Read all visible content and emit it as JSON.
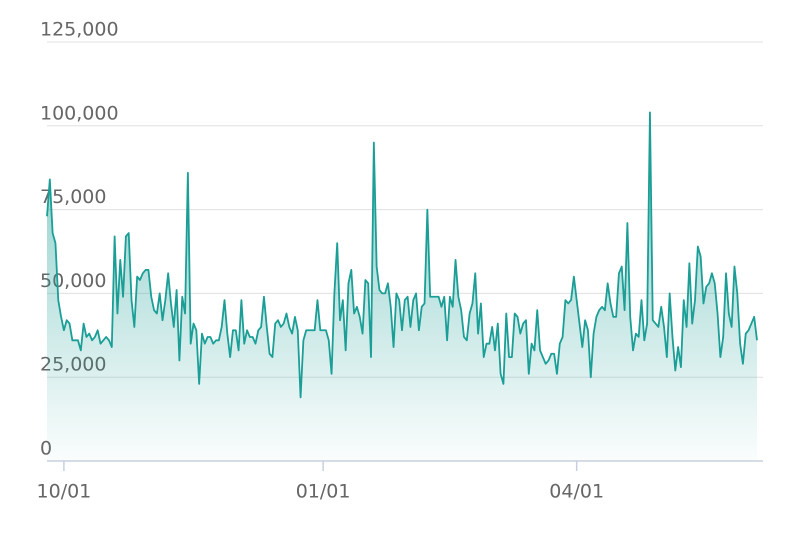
{
  "chart_data": {
    "type": "area",
    "color": "#1a9e96",
    "ylim": [
      0,
      125000
    ],
    "yticks": [
      0,
      {
        "value": 25000,
        "label": "25,000"
      },
      {
        "value": 50000,
        "label": "50,000"
      },
      {
        "value": 75000,
        "label": "75,000"
      },
      {
        "value": 100000,
        "label": "100,000"
      },
      {
        "value": 125000,
        "label": "125,000"
      }
    ],
    "grid": true,
    "xticks": [
      "10/01",
      "01/01",
      "04/01"
    ],
    "x": [
      "09/25",
      "09/26",
      "09/27",
      "09/28",
      "09/29",
      "09/30",
      "10/01",
      "10/02",
      "10/03",
      "10/04",
      "10/05",
      "10/06",
      "10/07",
      "10/08",
      "10/09",
      "10/10",
      "10/11",
      "10/12",
      "10/13",
      "10/14",
      "10/15",
      "10/16",
      "10/17",
      "10/18",
      "10/19",
      "10/20",
      "10/21",
      "10/22",
      "10/23",
      "10/24",
      "10/25",
      "10/26",
      "10/27",
      "10/28",
      "10/29",
      "10/30",
      "10/31",
      "11/01",
      "11/02",
      "11/03",
      "11/04",
      "11/05",
      "11/06",
      "11/07",
      "11/08",
      "11/09",
      "11/10",
      "11/11",
      "11/12",
      "11/13",
      "11/14",
      "11/15",
      "11/16",
      "11/17",
      "11/18",
      "11/19",
      "11/20",
      "11/21",
      "11/22",
      "11/23",
      "11/24",
      "11/25",
      "11/26",
      "11/27",
      "11/28",
      "11/29",
      "11/30",
      "12/01",
      "12/02",
      "12/03",
      "12/04",
      "12/05",
      "12/06",
      "12/07",
      "12/08",
      "12/09",
      "12/10",
      "12/11",
      "12/12",
      "12/13",
      "12/14",
      "12/15",
      "12/16",
      "12/17",
      "12/18",
      "12/19",
      "12/20",
      "12/21",
      "12/22",
      "12/23",
      "12/24",
      "12/25",
      "12/26",
      "12/27",
      "12/28",
      "12/29",
      "12/30",
      "12/31",
      "01/01",
      "01/02",
      "01/03",
      "01/04",
      "01/05",
      "01/06",
      "01/07",
      "01/08",
      "01/09",
      "01/10",
      "01/11",
      "01/12",
      "01/13",
      "01/14",
      "01/15",
      "01/16",
      "01/17",
      "01/18",
      "01/19",
      "01/20",
      "01/21",
      "01/22",
      "01/23",
      "01/24",
      "01/25",
      "01/26",
      "01/27",
      "01/28",
      "01/29",
      "01/30",
      "01/31",
      "02/01",
      "02/02",
      "02/03",
      "02/04",
      "02/05",
      "02/06",
      "02/07",
      "02/08",
      "02/09",
      "02/10",
      "02/11",
      "02/12",
      "02/13",
      "02/14",
      "02/15",
      "02/16",
      "02/17",
      "02/18",
      "02/19",
      "02/20",
      "02/21",
      "02/22",
      "02/23",
      "02/24",
      "02/25",
      "02/26",
      "02/27",
      "02/28",
      "03/01",
      "03/02",
      "03/03",
      "03/04",
      "03/05",
      "03/06",
      "03/07",
      "03/08",
      "03/09",
      "03/10",
      "03/11",
      "03/12",
      "03/13",
      "03/14",
      "03/15",
      "03/16",
      "03/17",
      "03/18",
      "03/19",
      "03/20",
      "03/21",
      "03/22",
      "03/23",
      "03/24",
      "03/25",
      "03/26",
      "03/27",
      "03/28",
      "03/29",
      "03/30",
      "03/31",
      "04/01",
      "04/02",
      "04/03",
      "04/04",
      "04/05",
      "04/06",
      "04/07",
      "04/08",
      "04/09",
      "04/10",
      "04/11",
      "04/12",
      "04/13",
      "04/14",
      "04/15",
      "04/16",
      "04/17",
      "04/18",
      "04/19",
      "04/20",
      "04/21",
      "04/22",
      "04/23",
      "04/24",
      "04/25",
      "04/26",
      "04/27",
      "04/28",
      "04/29",
      "04/30",
      "05/01",
      "05/02",
      "05/03",
      "05/04",
      "05/05",
      "05/06",
      "05/07",
      "05/08",
      "05/09",
      "05/10",
      "05/11",
      "05/12",
      "05/13",
      "05/14",
      "05/15",
      "05/16",
      "05/17",
      "05/18",
      "05/19",
      "05/20",
      "05/21",
      "05/22",
      "05/23",
      "05/24",
      "05/25",
      "05/26",
      "05/27",
      "05/28",
      "05/29",
      "05/30",
      "05/31",
      "06/01",
      "06/02",
      "06/03",
      "06/04"
    ],
    "values": [
      73000,
      84000,
      68000,
      65000,
      48000,
      43000,
      39000,
      42000,
      41000,
      36000,
      36000,
      36000,
      33000,
      41000,
      37000,
      38000,
      36000,
      37000,
      39000,
      35000,
      36000,
      37000,
      36000,
      34000,
      67000,
      44000,
      60000,
      49000,
      67000,
      68000,
      48000,
      40000,
      55000,
      54000,
      56000,
      57000,
      57000,
      49000,
      45000,
      44000,
      50000,
      42000,
      48000,
      56000,
      47000,
      40000,
      51000,
      30000,
      49000,
      44000,
      86000,
      35000,
      41000,
      39000,
      23000,
      38000,
      35000,
      37000,
      37000,
      35000,
      36000,
      36000,
      40000,
      48000,
      38000,
      31000,
      39000,
      39000,
      33000,
      48000,
      35000,
      39000,
      37000,
      37000,
      35000,
      39000,
      40000,
      49000,
      40000,
      32000,
      31000,
      41000,
      42000,
      40000,
      41000,
      44000,
      40000,
      38000,
      43000,
      39000,
      19000,
      36000,
      39000,
      39000,
      39000,
      39000,
      48000,
      39000,
      39000,
      39000,
      36000,
      26000,
      50000,
      65000,
      42000,
      48000,
      33000,
      53000,
      57000,
      44000,
      46000,
      43000,
      38000,
      54000,
      53000,
      31000,
      95000,
      58000,
      51000,
      50000,
      50000,
      53000,
      46000,
      34000,
      50000,
      48000,
      39000,
      48000,
      49000,
      40000,
      48000,
      50000,
      39000,
      46000,
      47000,
      75000,
      49000,
      49000,
      49000,
      49000,
      46000,
      49000,
      36000,
      49000,
      46000,
      60000,
      49000,
      45000,
      37000,
      36000,
      44000,
      47000,
      56000,
      38000,
      47000,
      31000,
      35000,
      35000,
      40000,
      33000,
      41000,
      26000,
      23000,
      44000,
      31000,
      31000,
      44000,
      43000,
      38000,
      41000,
      42000,
      26000,
      35000,
      33000,
      45000,
      33000,
      31000,
      29000,
      30000,
      32000,
      32000,
      26000,
      35000,
      37000,
      48000,
      47000,
      48000,
      55000,
      48000,
      41000,
      34000,
      42000,
      39000,
      25000,
      38000,
      43000,
      45000,
      46000,
      45000,
      53000,
      47000,
      43000,
      43000,
      56000,
      58000,
      45000,
      71000,
      43000,
      33000,
      38000,
      37000,
      48000,
      36000,
      41000,
      104000,
      42000,
      41000,
      40000,
      46000,
      40000,
      31000,
      50000,
      37000,
      27000,
      34000,
      28000,
      48000,
      40000,
      59000,
      41000,
      48000,
      64000,
      61000,
      47000,
      52000,
      53000,
      56000,
      53000,
      44000,
      31000,
      37000,
      56000,
      44000,
      40000,
      58000,
      50000,
      35000,
      29000,
      38000,
      39000,
      41000,
      43000,
      36000
    ]
  }
}
